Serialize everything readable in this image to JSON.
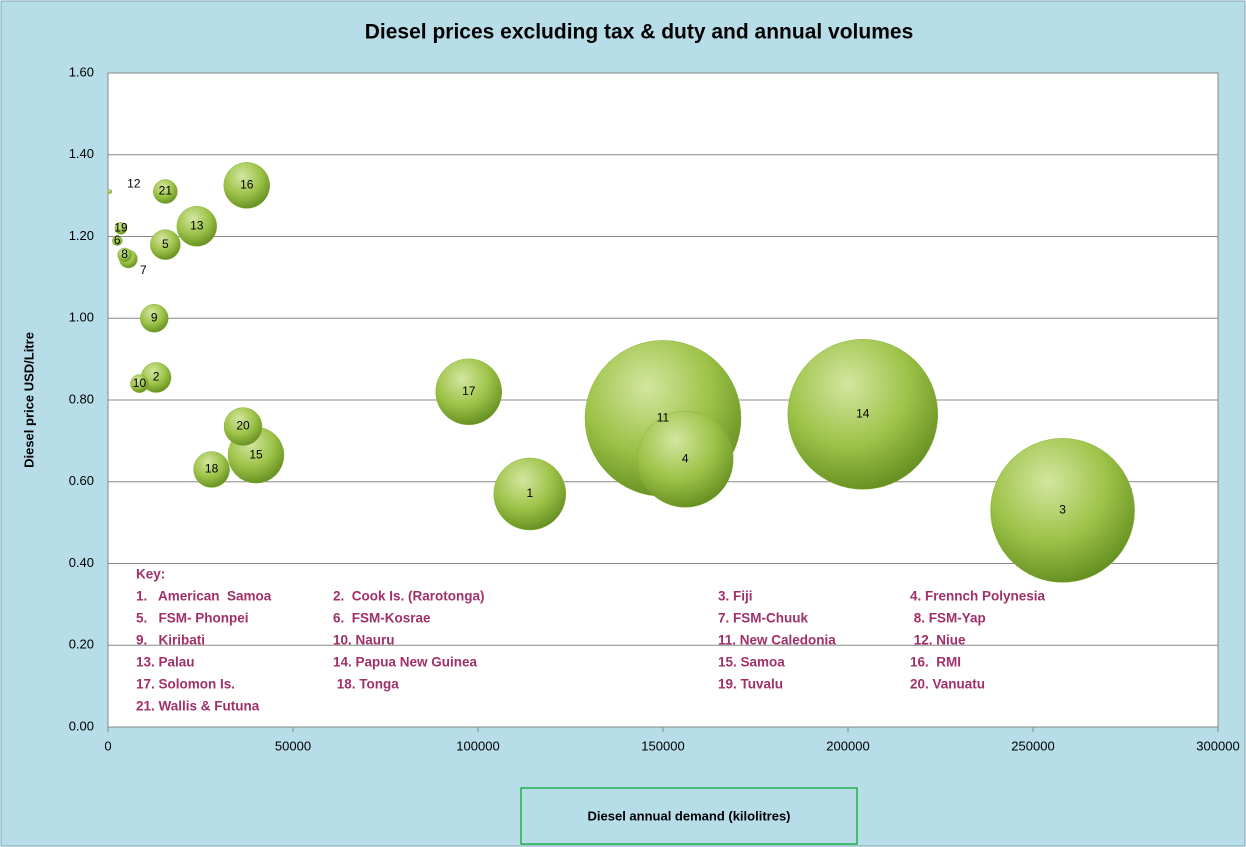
{
  "chart_data": {
    "type": "bubble",
    "title": "Diesel prices excluding tax & duty and annual volumes",
    "xlabel": "Diesel annual demand (kilolitres)",
    "ylabel": "Diesel price USD/Litre",
    "xlim": [
      0,
      300000
    ],
    "xticks": [
      0,
      50000,
      100000,
      150000,
      200000,
      250000,
      300000
    ],
    "ylim": [
      0,
      1.6
    ],
    "yticks": [
      {
        "value": 0,
        "label": "0.00"
      },
      {
        "value": 0.2,
        "label": "0.20"
      },
      {
        "value": 0.4,
        "label": "0.40"
      },
      {
        "value": 0.6,
        "label": "0.60"
      },
      {
        "value": 0.8,
        "label": "0.80"
      },
      {
        "value": 1.0,
        "label": "1.00"
      },
      {
        "value": 1.2,
        "label": "1.20"
      },
      {
        "value": 1.4,
        "label": "1.40"
      },
      {
        "value": 1.6,
        "label": "1.60"
      }
    ],
    "grid": true,
    "series": [
      {
        "color": "#8db33a",
        "labels": [
          "1",
          "2",
          "3",
          "4",
          "5",
          "6",
          "7",
          "8",
          "9",
          "10",
          "11",
          "12",
          "13",
          "14",
          "15",
          "16",
          "17",
          "18",
          "19",
          "20",
          "21"
        ],
        "x": [
          114000,
          13000,
          258000,
          156000,
          15500,
          2500,
          5500,
          4500,
          12500,
          8500,
          150000,
          500,
          24000,
          204000,
          40000,
          37500,
          97500,
          28000,
          3500,
          36500,
          15500
        ],
        "y": [
          0.57,
          0.855,
          0.53,
          0.655,
          1.18,
          1.19,
          1.145,
          1.155,
          1.0,
          0.84,
          0.755,
          1.31,
          1.225,
          0.765,
          0.665,
          1.325,
          0.82,
          0.63,
          1.22,
          0.735,
          1.31
        ],
        "sizes": [
          1296,
          225,
          5184,
          2304,
          225,
          25,
          81,
          49,
          196,
          81,
          6084,
          4,
          400,
          5625,
          784,
          529,
          1089,
          324,
          36,
          361,
          144
        ]
      }
    ],
    "key_title": "Key:",
    "key_items": [
      "1.   American  Samoa",
      "2.  Cook Is. (Rarotonga)",
      "3. Fiji",
      "4. Frennch Polynesia",
      "5.   FSM- Phonpei",
      "6.  FSM-Kosrae",
      "7. FSM-Chuuk",
      " 8. FSM-Yap",
      "9.   Kiribati",
      "10. Nauru",
      "11. New Caledonia",
      " 12. Niue",
      "13. Palau",
      "14. Papua New Guinea",
      "15. Samoa",
      "16.  RMI",
      "17. Solomon Is.",
      " 18. Tonga",
      "19. Tuvalu",
      "20. Vanuatu",
      "21. Wallis & Futuna"
    ]
  }
}
